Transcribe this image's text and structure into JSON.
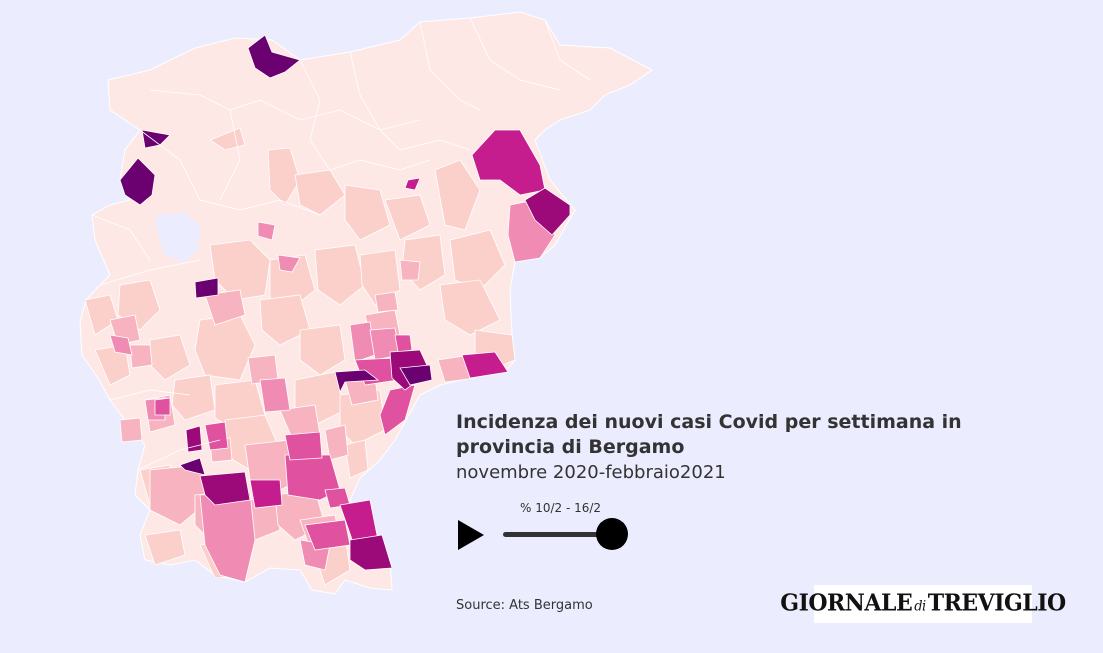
{
  "title": "Incidenza dei nuovi casi Covid per settimana in provincia di Bergamo",
  "subtitle": "novembre 2020-febbraio2021",
  "slider": {
    "label": "% 10/2 - 16/2",
    "position": 1.0
  },
  "source": "Source: Ats Bergamo",
  "logo": {
    "part1": "GIORNALE",
    "part2": "di",
    "part3": "TREVIGLIO"
  },
  "colors": {
    "background": "#ebecfe",
    "level_0": "#fde8e6",
    "level_1": "#fbd0ca",
    "level_2": "#f7b3c0",
    "level_3": "#f08bb3",
    "level_4": "#e0519f",
    "level_5": "#c51d8d",
    "level_6": "#9c0a7a",
    "level_7": "#6b0170"
  },
  "icons": {
    "play": "play-icon"
  }
}
